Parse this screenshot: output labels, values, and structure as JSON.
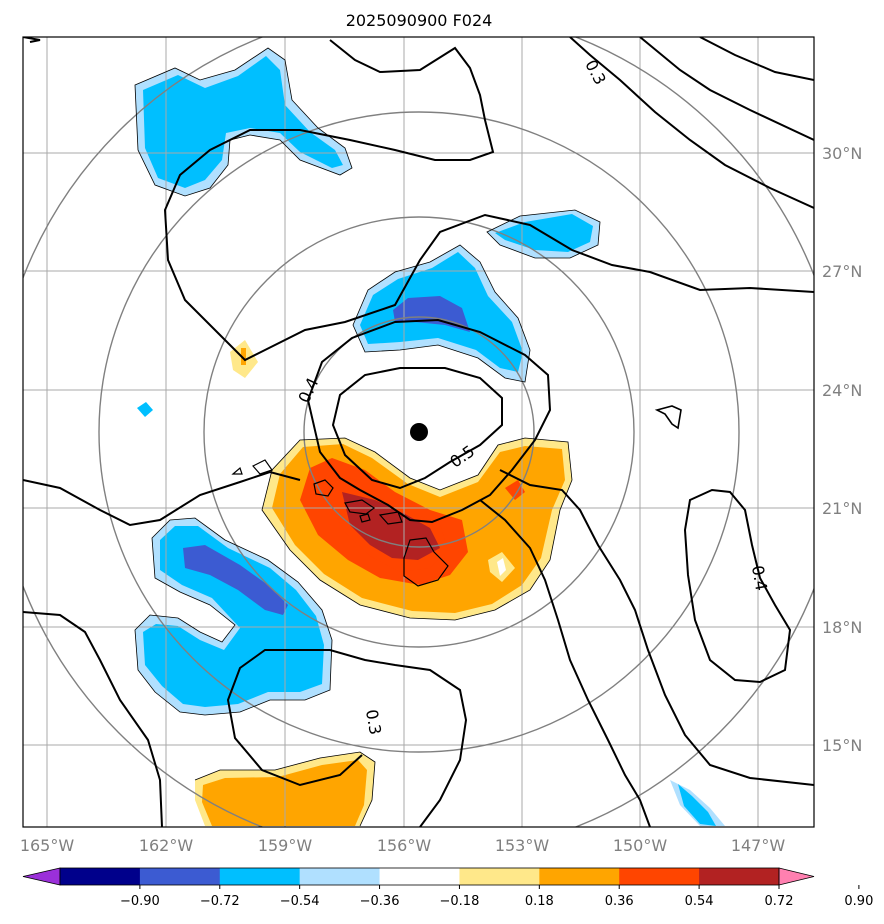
{
  "title": "2025090900 F024",
  "lon_ticks": [
    "165°W",
    "162°W",
    "159°W",
    "156°W",
    "153°W",
    "150°W",
    "147°W"
  ],
  "lat_ticks": [
    "30°N",
    "27°N",
    "24°N",
    "21°N",
    "18°N",
    "15°N"
  ],
  "contour_labels": [
    "0.3",
    "0.4",
    "0.5",
    "0.4",
    "0.3"
  ],
  "colorbar": {
    "labels": [
      "−0.90",
      "−0.72",
      "−0.54",
      "−0.36",
      "−0.18",
      "0.18",
      "0.36",
      "0.54",
      "0.72",
      "0.90"
    ],
    "colors": [
      "#9b30d9",
      "#00008b",
      "#3c5bd2",
      "#00bfff",
      "#b0e0ff",
      "#ffffff",
      "#ffe88a",
      "#ffa500",
      "#ff4500",
      "#b22222",
      "#ff80b0"
    ]
  },
  "colors": {
    "grid": "#a9a9a9",
    "range_rings": "#808080",
    "contour": "#000000",
    "center_marker": "#000000"
  }
}
